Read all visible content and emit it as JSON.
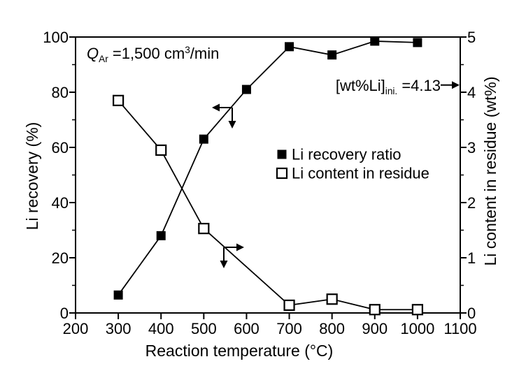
{
  "figure": {
    "background": "#ffffff",
    "ink_color": "#000000"
  },
  "chart_data": {
    "type": "line",
    "title": "",
    "x_axis": {
      "label": "Reaction temperature (°C)",
      "min": 200,
      "max": 1100,
      "major_ticks": [
        200,
        300,
        400,
        500,
        600,
        700,
        800,
        900,
        1000,
        1100
      ]
    },
    "y_axis_left": {
      "label": "Li recovery (%)",
      "min": 0,
      "max": 100,
      "major_ticks": [
        0,
        20,
        40,
        60,
        80,
        100
      ],
      "minor_tick_step": 10
    },
    "y_axis_right": {
      "label": "Li content in residue (wt%)",
      "min": 0,
      "max": 5,
      "major_ticks": [
        0,
        1,
        2,
        3,
        4,
        5
      ],
      "minor_tick_step": 0.5
    },
    "series": [
      {
        "name": "Li recovery ratio",
        "axis": "left",
        "marker": "filled-square",
        "x": [
          300,
          400,
          500,
          600,
          700,
          800,
          900,
          1000
        ],
        "y": [
          6.5,
          28,
          63,
          81,
          96.5,
          93.5,
          98.5,
          98
        ]
      },
      {
        "name": "Li content in residue",
        "axis": "right",
        "marker": "open-square",
        "x": [
          300,
          400,
          500,
          700,
          800,
          900,
          1000
        ],
        "y": [
          3.85,
          2.95,
          1.53,
          0.14,
          0.25,
          0.06,
          0.06
        ]
      }
    ],
    "legend": {
      "items": [
        {
          "marker": "filled-square",
          "label": "Li recovery ratio"
        },
        {
          "marker": "open-square",
          "label": "Li content in residue"
        }
      ]
    },
    "annotations": [
      {
        "id": "argon-flow",
        "prefix": "Q",
        "subscript": "Ar",
        "middle": " =1,500 cm",
        "superscript": "3",
        "suffix": "/min"
      },
      {
        "id": "initial-li-content",
        "prefix": "[wt%Li]",
        "subscript": "ini.",
        "suffix": " =4.13",
        "arrow_to_right_axis_value": 4.13
      }
    ],
    "axis_indicator_arrows": [
      {
        "series": "Li recovery ratio",
        "directions": [
          "left",
          "down"
        ]
      },
      {
        "series": "Li content in residue",
        "directions": [
          "right",
          "down"
        ]
      }
    ]
  }
}
